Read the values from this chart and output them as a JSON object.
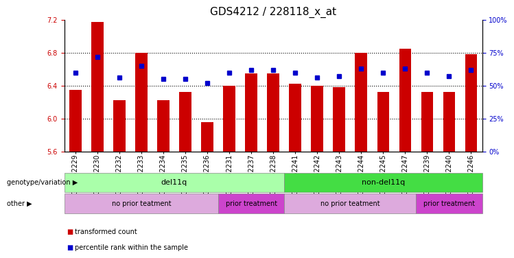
{
  "title": "GDS4212 / 228118_x_at",
  "samples": [
    "GSM652229",
    "GSM652230",
    "GSM652232",
    "GSM652233",
    "GSM652234",
    "GSM652235",
    "GSM652236",
    "GSM652231",
    "GSM652237",
    "GSM652238",
    "GSM652241",
    "GSM652242",
    "GSM652243",
    "GSM652244",
    "GSM652245",
    "GSM652247",
    "GSM652239",
    "GSM652240",
    "GSM652246"
  ],
  "bar_values": [
    6.35,
    7.17,
    6.22,
    6.8,
    6.22,
    6.32,
    5.96,
    6.4,
    6.55,
    6.55,
    6.42,
    6.4,
    6.38,
    6.8,
    6.32,
    6.85,
    6.32,
    6.32,
    6.78
  ],
  "dot_values": [
    60,
    72,
    56,
    65,
    55,
    55,
    52,
    60,
    62,
    62,
    60,
    56,
    57,
    63,
    60,
    63,
    60,
    57,
    62
  ],
  "ylim_left": [
    5.6,
    7.2
  ],
  "ylim_right": [
    0,
    100
  ],
  "yticks_left": [
    5.6,
    6.0,
    6.4,
    6.8,
    7.2
  ],
  "yticks_right": [
    0,
    25,
    50,
    75,
    100
  ],
  "ytick_right_labels": [
    "0%",
    "25%",
    "50%",
    "75%",
    "100%"
  ],
  "bar_color": "#CC0000",
  "dot_color": "#0000CC",
  "bar_bottom": 5.6,
  "genotype_groups": [
    {
      "label": "del11q",
      "start": 0,
      "end": 10,
      "color": "#AAFFAA"
    },
    {
      "label": "non-del11q",
      "start": 10,
      "end": 19,
      "color": "#44DD44"
    }
  ],
  "treatment_groups": [
    {
      "label": "no prior teatment",
      "start": 0,
      "end": 7,
      "color": "#DDAADD"
    },
    {
      "label": "prior treatment",
      "start": 7,
      "end": 10,
      "color": "#CC44CC"
    },
    {
      "label": "no prior teatment",
      "start": 10,
      "end": 16,
      "color": "#DDAADD"
    },
    {
      "label": "prior treatment",
      "start": 16,
      "end": 19,
      "color": "#CC44CC"
    }
  ],
  "legend_items": [
    {
      "label": "transformed count",
      "color": "#CC0000"
    },
    {
      "label": "percentile rank within the sample",
      "color": "#0000CC"
    }
  ],
  "genotype_label": "genotype/variation",
  "other_label": "other",
  "title_fontsize": 11,
  "tick_fontsize": 7,
  "label_fontsize": 8,
  "band_label_fontsize": 8
}
